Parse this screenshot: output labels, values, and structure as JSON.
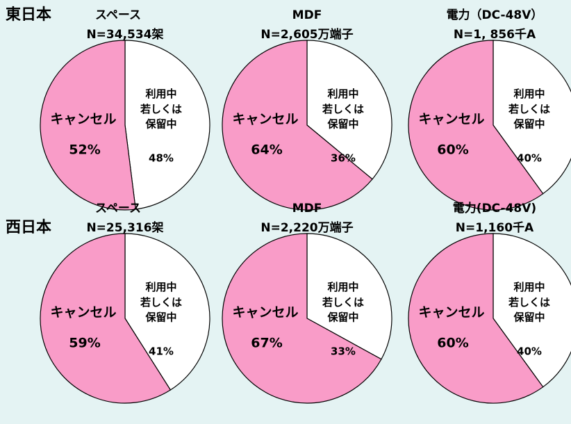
{
  "regions": [
    "東日本",
    "西日本"
  ],
  "chart_data": [
    {
      "type": "pie",
      "title": "スペース",
      "subtitle": "N=34,534架",
      "categories": [
        "利用中\n若しくは\n保留中",
        "キャンセル"
      ],
      "values": [
        48,
        52
      ],
      "value_labels": [
        "48%",
        "52%"
      ],
      "colors": [
        "#ffffff",
        "#f99cc8"
      ]
    },
    {
      "type": "pie",
      "title": "MDF",
      "subtitle": "N=2,605万端子",
      "categories": [
        "利用中\n若しくは\n保留中",
        "キャンセル"
      ],
      "values": [
        36,
        64
      ],
      "value_labels": [
        "36%",
        "64%"
      ],
      "colors": [
        "#ffffff",
        "#f99cc8"
      ]
    },
    {
      "type": "pie",
      "title": "電力（DC-48V）",
      "subtitle": "N=1, 856千A",
      "categories": [
        "利用中\n若しくは\n保留中",
        "キャンセル"
      ],
      "values": [
        40,
        60
      ],
      "value_labels": [
        "40%",
        "60%"
      ],
      "colors": [
        "#ffffff",
        "#f99cc8"
      ]
    },
    {
      "type": "pie",
      "title": "スペース",
      "subtitle": "N=25,316架",
      "categories": [
        "利用中\n若しくは\n保留中",
        "キャンセル"
      ],
      "values": [
        41,
        59
      ],
      "value_labels": [
        "41%",
        "59%"
      ],
      "colors": [
        "#ffffff",
        "#f99cc8"
      ]
    },
    {
      "type": "pie",
      "title": "MDF",
      "subtitle": "N=2,220万端子",
      "categories": [
        "利用中\n若しくは\n保留中",
        "キャンセル"
      ],
      "values": [
        33,
        67
      ],
      "value_labels": [
        "33%",
        "67%"
      ],
      "colors": [
        "#ffffff",
        "#f99cc8"
      ]
    },
    {
      "type": "pie",
      "title": "電力(DC-48V)",
      "subtitle": "N=1,160千A",
      "categories": [
        "利用中\n若しくは\n保留中",
        "キャンセル"
      ],
      "values": [
        40,
        60
      ],
      "value_labels": [
        "40%",
        "60%"
      ],
      "colors": [
        "#ffffff",
        "#f99cc8"
      ]
    }
  ]
}
